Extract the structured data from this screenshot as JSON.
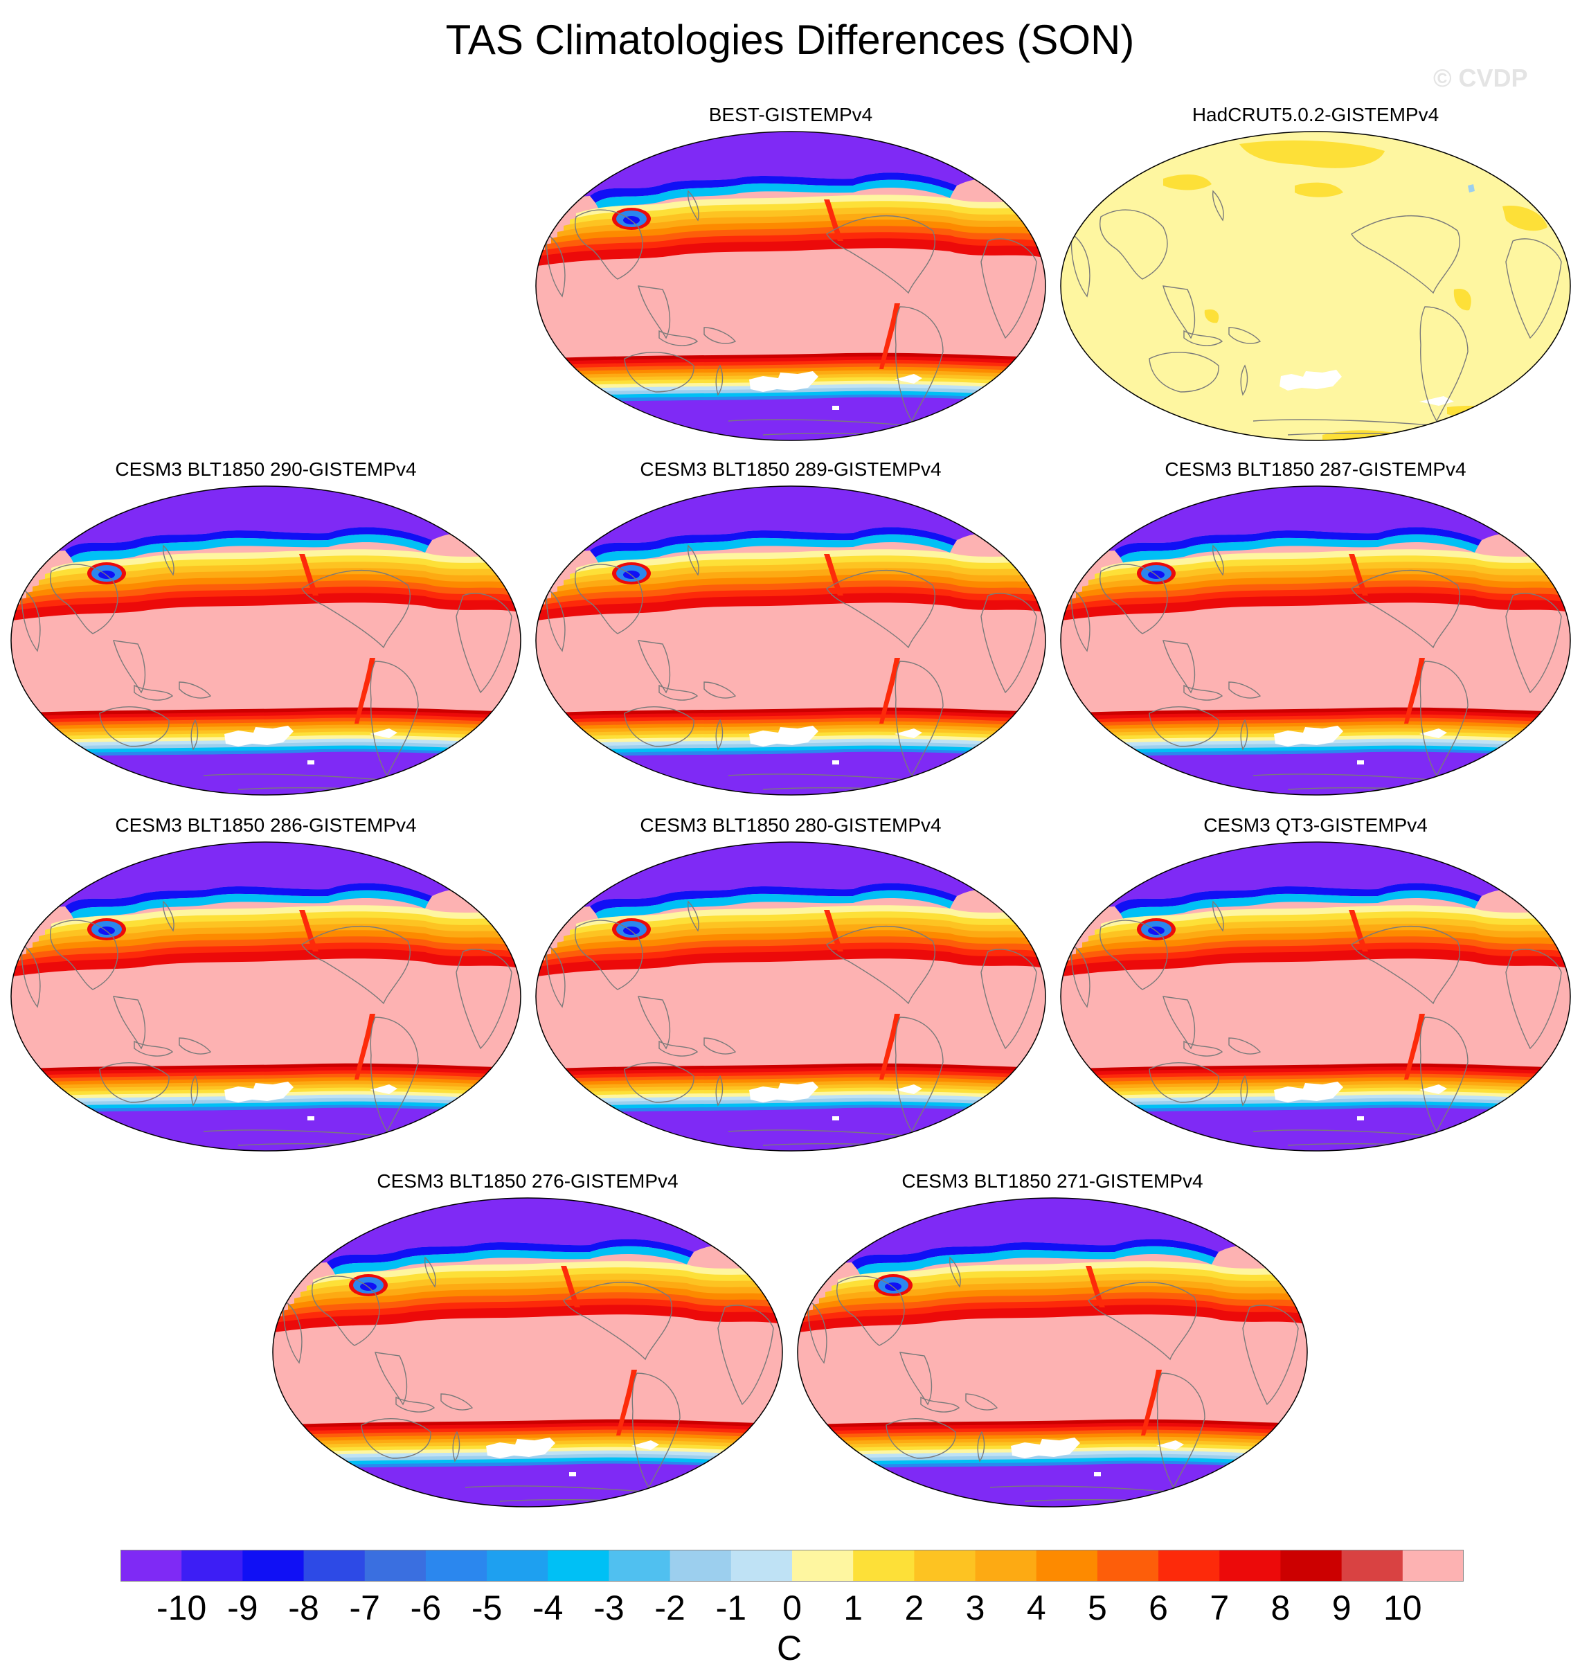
{
  "title": "TAS Climatologies Differences (SON)",
  "copyright": "© CVDP",
  "panels": [
    {
      "label": "BEST-GISTEMPv4",
      "style": "obs"
    },
    {
      "label": "HadCRUT5.0.2-GISTEMPv4",
      "style": "had"
    },
    {
      "label": "CESM3 BLT1850 290-GISTEMPv4",
      "style": "model"
    },
    {
      "label": "CESM3 BLT1850 289-GISTEMPv4",
      "style": "model"
    },
    {
      "label": "CESM3 BLT1850 287-GISTEMPv4",
      "style": "model"
    },
    {
      "label": "CESM3 BLT1850 286-GISTEMPv4",
      "style": "model"
    },
    {
      "label": "CESM3 BLT1850 280-GISTEMPv4",
      "style": "model"
    },
    {
      "label": "CESM3 QT3-GISTEMPv4",
      "style": "model"
    },
    {
      "label": "CESM3 BLT1850 276-GISTEMPv4",
      "style": "model"
    },
    {
      "label": "CESM3 BLT1850 271-GISTEMPv4",
      "style": "model"
    }
  ],
  "chart_data": {
    "type": "heatmap",
    "title": "TAS Climatologies Differences (SON)",
    "variable": "TAS",
    "season": "SON",
    "units": "C",
    "colorbar": {
      "tick_labels": [
        "-10",
        "-9",
        "-8",
        "-7",
        "-6",
        "-5",
        "-4",
        "-3",
        "-2",
        "-1",
        "0",
        "1",
        "2",
        "3",
        "4",
        "5",
        "6",
        "7",
        "8",
        "9",
        "10"
      ],
      "levels": [
        -10,
        -9,
        -8,
        -7,
        -6,
        -5,
        -4,
        -3,
        -2,
        -1,
        0,
        1,
        2,
        3,
        4,
        5,
        6,
        7,
        8,
        9,
        10
      ],
      "colors": [
        "#7f2af5",
        "#3d1ef5",
        "#1010f5",
        "#2d4ae6",
        "#3a6fe0",
        "#2b87ee",
        "#1ea0f0",
        "#00c0f5",
        "#50c0f0",
        "#9ccfee",
        "#bfe2f5",
        "#fef6a0",
        "#fde038",
        "#fdc322",
        "#fdaa13",
        "#fd8a00",
        "#fd5e0a",
        "#fd2a0a",
        "#ec0a0a",
        "#cc0000",
        "#d94242",
        "#fdb2b2"
      ]
    },
    "panel_labels": [
      "BEST-GISTEMPv4",
      "HadCRUT5.0.2-GISTEMPv4",
      "CESM3 BLT1850 290-GISTEMPv4",
      "CESM3 BLT1850 289-GISTEMPv4",
      "CESM3 BLT1850 287-GISTEMPv4",
      "CESM3 BLT1850 286-GISTEMPv4",
      "CESM3 BLT1850 280-GISTEMPv4",
      "CESM3 QT3-GISTEMPv4",
      "CESM3 BLT1850 276-GISTEMPv4",
      "CESM3 BLT1850 271-GISTEMPv4"
    ]
  }
}
